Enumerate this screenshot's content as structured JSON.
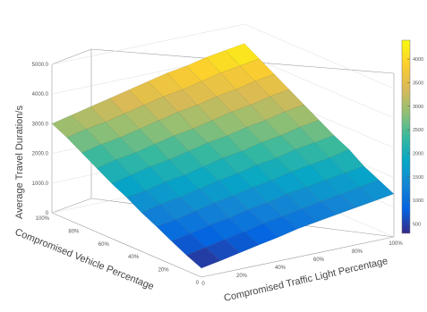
{
  "chart_data": {
    "type": "surface",
    "xlabel": "Compromised Vehicle Percentage",
    "ylabel": "Compromised Traffic Light Percentage",
    "zlabel": "Average Travel Duration/s",
    "x_ticks": [
      "0",
      "20%",
      "40%",
      "60%",
      "80%",
      "100%"
    ],
    "y_ticks": [
      "0",
      "20%",
      "40%",
      "60%",
      "80%",
      "100%"
    ],
    "z_ticks": [
      "0",
      "1000.0",
      "2000.0",
      "3000.0",
      "4000.0",
      "5000.0"
    ],
    "zlim": [
      0,
      5000
    ],
    "colorbar_ticks": [
      "500",
      "1000",
      "1500",
      "2000",
      "2500",
      "3000",
      "3500",
      "4000"
    ],
    "colorbar_range": [
      300,
      4400
    ],
    "colormap": "parula",
    "x": [
      0,
      10,
      20,
      30,
      40,
      50,
      60,
      70,
      80,
      90,
      100
    ],
    "y": [
      0,
      10,
      20,
      30,
      40,
      50,
      60,
      70,
      80,
      90,
      100
    ],
    "z": [
      [
        300,
        420,
        550,
        680,
        800,
        950,
        1050,
        1150,
        1250,
        1350,
        1450
      ],
      [
        520,
        650,
        780,
        900,
        1050,
        1150,
        1280,
        1380,
        1480,
        1600,
        1700
      ],
      [
        780,
        900,
        1050,
        1150,
        1300,
        1400,
        1550,
        1650,
        1750,
        1850,
        1950
      ],
      [
        1050,
        1150,
        1300,
        1450,
        1550,
        1700,
        1800,
        1950,
        2050,
        2150,
        2300
      ],
      [
        1300,
        1450,
        1550,
        1700,
        1850,
        1950,
        2100,
        2200,
        2350,
        2450,
        2550
      ],
      [
        1600,
        1700,
        1850,
        1950,
        2100,
        2250,
        2350,
        2500,
        2600,
        2750,
        2850
      ],
      [
        1850,
        2000,
        2150,
        2250,
        2400,
        2550,
        2650,
        2800,
        2900,
        3050,
        3150
      ],
      [
        2150,
        2300,
        2400,
        2550,
        2700,
        2800,
        2950,
        3100,
        3200,
        3350,
        3450
      ],
      [
        2450,
        2600,
        2700,
        2850,
        3000,
        3150,
        3250,
        3400,
        3500,
        3650,
        3750
      ],
      [
        2750,
        2900,
        3000,
        3150,
        3300,
        3450,
        3550,
        3700,
        3850,
        3950,
        4050
      ],
      [
        3000,
        3150,
        3300,
        3450,
        3600,
        3750,
        3900,
        4000,
        4150,
        4250,
        4350
      ]
    ]
  }
}
